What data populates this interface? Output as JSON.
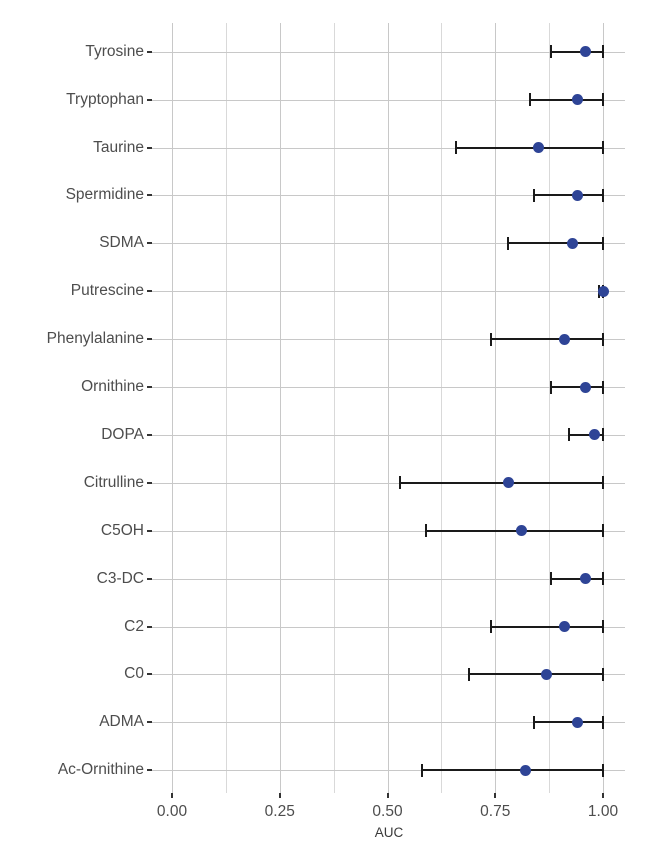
{
  "chart_data": {
    "type": "scatter",
    "subtype": "dot-with-error-bars",
    "orientation": "horizontal",
    "title": "",
    "xlabel": "AUC",
    "ylabel": "",
    "xlim": [
      -0.05,
      1.05
    ],
    "x_ticks": [
      0,
      0.25,
      0.5,
      0.75,
      1.0
    ],
    "x_tick_labels": [
      "0.00",
      "0.25",
      "0.50",
      "0.75",
      "1.00"
    ],
    "x_minor_gridlines": [
      0.125,
      0.375,
      0.625,
      0.875
    ],
    "grid": true,
    "legend": false,
    "categories": [
      "Tyrosine",
      "Tryptophan",
      "Taurine",
      "Spermidine",
      "SDMA",
      "Putrescine",
      "Phenylalanine",
      "Ornithine",
      "DOPA",
      "Citrulline",
      "C5OH",
      "C3-DC",
      "C2",
      "C0",
      "ADMA",
      "Ac-Ornithine"
    ],
    "series": [
      {
        "name": "AUC",
        "values": [
          0.96,
          0.94,
          0.85,
          0.94,
          0.93,
          1.0,
          0.91,
          0.96,
          0.98,
          0.78,
          0.81,
          0.96,
          0.91,
          0.87,
          0.94,
          0.82
        ],
        "ci_low": [
          0.88,
          0.83,
          0.66,
          0.84,
          0.78,
          0.99,
          0.74,
          0.88,
          0.92,
          0.53,
          0.59,
          0.88,
          0.74,
          0.69,
          0.84,
          0.58
        ],
        "ci_high": [
          1.0,
          1.0,
          1.0,
          1.0,
          1.0,
          1.0,
          1.0,
          1.0,
          1.0,
          1.0,
          1.0,
          1.0,
          1.0,
          1.0,
          1.0,
          1.0
        ]
      }
    ]
  },
  "colors": {
    "point": "#2e4496",
    "errorbar": "#1a1a1a",
    "grid_major": "#c8c8c8",
    "grid_minor": "#d9d9d9",
    "axis_text": "#4d4d4d",
    "axis_title": "#3a3a3a",
    "background": "#ffffff"
  }
}
